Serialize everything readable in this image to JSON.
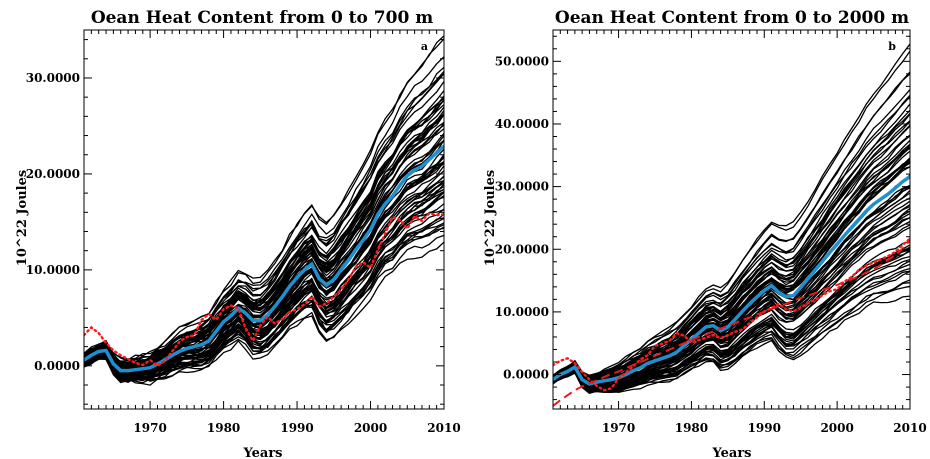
{
  "colors": {
    "ensemble": "#000000",
    "mean": "#1f8fd0",
    "observed": "#ff1a1a",
    "trend": "#e41a1c"
  },
  "chart_data": [
    {
      "type": "line",
      "panel_tag": "a",
      "title": "Oean Heat Content from  0 to  700 m",
      "xlabel": "Years",
      "ylabel": "10^22 Joules",
      "xlim": [
        1961,
        2010
      ],
      "ylim": [
        -4.5,
        35
      ],
      "xticks": [
        1970,
        1980,
        1990,
        2000,
        2010
      ],
      "yticks": [
        0,
        10,
        20,
        30
      ],
      "ytick_labels": [
        "0.0000",
        "10.0000",
        "20.0000",
        "30.0000"
      ],
      "x": [
        1961,
        1962,
        1963,
        1964,
        1965,
        1966,
        1967,
        1968,
        1969,
        1970,
        1971,
        1972,
        1973,
        1974,
        1975,
        1976,
        1977,
        1978,
        1979,
        1980,
        1981,
        1982,
        1983,
        1984,
        1985,
        1986,
        1987,
        1988,
        1989,
        1990,
        1991,
        1992,
        1993,
        1994,
        1995,
        1996,
        1997,
        1998,
        1999,
        2000,
        2001,
        2002,
        2003,
        2004,
        2005,
        2006,
        2007,
        2008,
        2009,
        2010
      ],
      "series": [
        {
          "role": "mean",
          "values": [
            0.6,
            1.1,
            1.5,
            1.6,
            0.2,
            -0.5,
            -0.5,
            -0.4,
            -0.3,
            -0.2,
            0.2,
            0.6,
            1.1,
            1.5,
            1.8,
            2.0,
            2.2,
            2.6,
            3.6,
            4.6,
            5.2,
            6.0,
            5.5,
            4.7,
            4.7,
            5.3,
            6.2,
            7.2,
            8.3,
            9.2,
            10.0,
            10.6,
            9.1,
            8.4,
            9.0,
            10.0,
            11.0,
            12.1,
            13.1,
            14.2,
            15.8,
            16.9,
            17.7,
            18.8,
            19.8,
            20.4,
            20.8,
            21.5,
            22.2,
            22.9
          ]
        },
        {
          "role": "observed",
          "values": [
            3.2,
            4.0,
            3.4,
            2.4,
            1.6,
            1.1,
            0.7,
            0.3,
            0.1,
            0.6,
            0.0,
            0.5,
            1.5,
            2.5,
            3.0,
            3.2,
            4.8,
            5.4,
            4.8,
            5.9,
            6.3,
            6.0,
            3.9,
            2.6,
            4.2,
            5.1,
            4.4,
            4.9,
            5.6,
            5.9,
            6.4,
            7.2,
            6.2,
            6.5,
            7.2,
            7.9,
            9.0,
            10.3,
            10.8,
            10.2,
            12.1,
            13.8,
            15.5,
            15.2,
            14.3,
            15.6,
            15.1,
            15.9,
            15.7,
            15.8
          ]
        }
      ]
    },
    {
      "type": "line",
      "panel_tag": "b",
      "title": "Oean Heat Content from  0 to  2000 m",
      "xlabel": "Years",
      "ylabel": "10^22 Joules",
      "xlim": [
        1961,
        2010
      ],
      "ylim": [
        -5.5,
        55
      ],
      "xticks": [
        1970,
        1980,
        1990,
        2000,
        2010
      ],
      "yticks": [
        0,
        10,
        20,
        30,
        40,
        50
      ],
      "ytick_labels": [
        "0.0000",
        "10.0000",
        "20.0000",
        "30.0000",
        "40.0000",
        "50.0000"
      ],
      "x": [
        1961,
        1962,
        1963,
        1964,
        1965,
        1966,
        1967,
        1968,
        1969,
        1970,
        1971,
        1972,
        1973,
        1974,
        1975,
        1976,
        1977,
        1978,
        1979,
        1980,
        1981,
        1982,
        1983,
        1984,
        1985,
        1986,
        1987,
        1988,
        1989,
        1990,
        1991,
        1992,
        1993,
        1994,
        1995,
        1996,
        1997,
        1998,
        1999,
        2000,
        2001,
        2002,
        2003,
        2004,
        2005,
        2006,
        2007,
        2008,
        2009,
        2010
      ],
      "series": [
        {
          "role": "mean",
          "values": [
            -0.8,
            0.0,
            0.5,
            1.2,
            -0.8,
            -1.5,
            -1.2,
            -1.0,
            -0.8,
            -0.5,
            0.0,
            0.6,
            1.1,
            1.8,
            2.2,
            2.6,
            3.0,
            3.6,
            4.6,
            5.6,
            6.6,
            7.6,
            7.8,
            7.0,
            7.6,
            8.8,
            10.1,
            11.3,
            12.4,
            13.4,
            14.2,
            13.1,
            12.4,
            12.6,
            13.9,
            15.3,
            16.7,
            18.1,
            19.5,
            20.8,
            22.2,
            23.5,
            24.8,
            26.1,
            27.2,
            28.0,
            28.8,
            29.8,
            30.8,
            31.6
          ]
        },
        {
          "role": "observed",
          "values": [
            1.5,
            2.2,
            2.6,
            1.8,
            0.4,
            -0.8,
            -1.8,
            -2.5,
            -2.2,
            -0.6,
            0.3,
            1.3,
            2.4,
            3.1,
            4.6,
            4.9,
            5.4,
            6.6,
            6.2,
            5.1,
            5.5,
            5.9,
            6.3,
            5.8,
            6.3,
            6.8,
            7.2,
            8.2,
            9.1,
            10.1,
            10.6,
            11.3,
            10.4,
            10.1,
            10.7,
            11.4,
            11.9,
            12.7,
            13.3,
            13.6,
            14.8,
            15.6,
            16.7,
            17.4,
            17.9,
            18.4,
            18.9,
            19.6,
            20.7,
            21.7
          ]
        },
        {
          "role": "trend",
          "values": [
            -5.0,
            -4.1,
            -3.3,
            -2.5,
            -1.9,
            -1.4,
            -0.9,
            -0.4,
            0.1,
            0.5,
            1.0,
            1.5,
            2.0,
            2.5,
            3.0,
            3.5,
            4.0,
            4.5,
            5.0,
            5.5,
            6.0,
            6.4,
            6.9,
            7.3,
            7.8,
            8.2,
            8.7,
            9.1,
            9.6,
            10.0,
            10.5,
            10.9,
            11.3,
            11.8,
            12.2,
            12.6,
            13.0,
            13.5,
            13.9,
            14.3,
            14.8,
            15.2,
            15.7,
            16.3,
            16.8,
            17.5,
            18.3,
            19.1,
            20.1,
            21.4
          ]
        }
      ]
    }
  ]
}
